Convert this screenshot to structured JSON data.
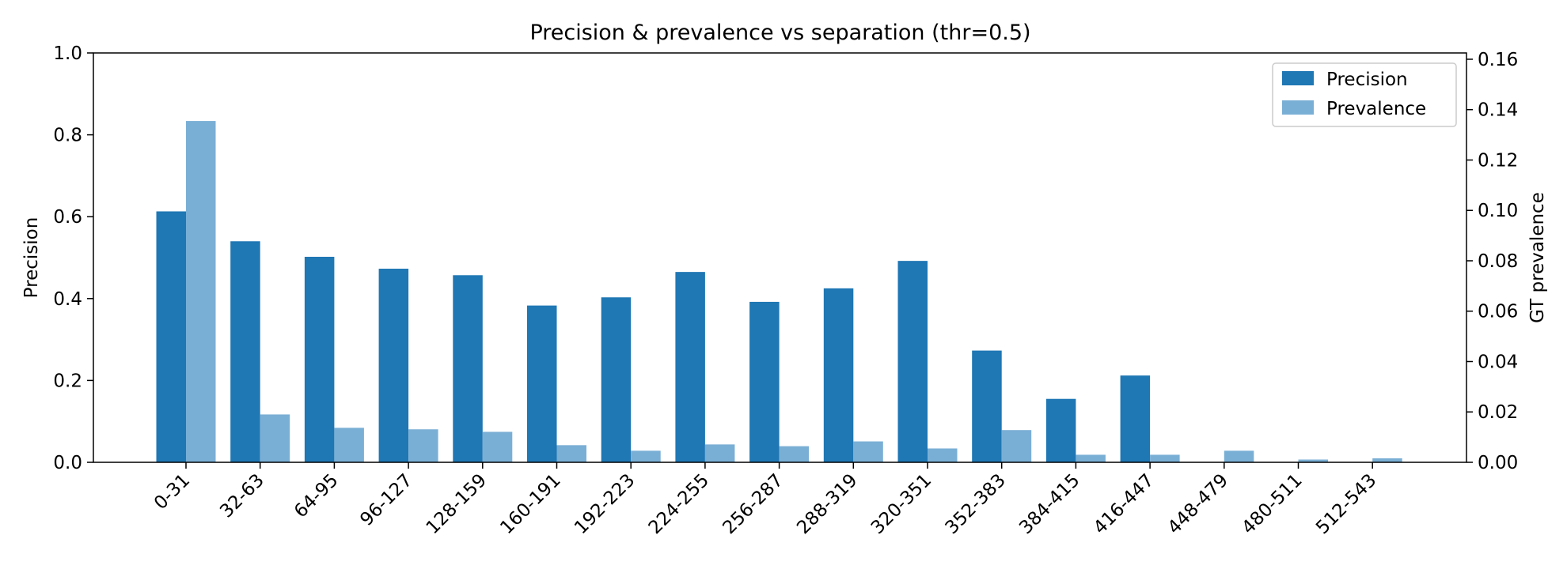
{
  "chart_data": {
    "type": "bar",
    "title": "Precision & prevalence vs separation (thr=0.5)",
    "categories": [
      "0-31",
      "32-63",
      "64-95",
      "96-127",
      "128-159",
      "160-191",
      "192-223",
      "224-255",
      "256-287",
      "288-319",
      "320-351",
      "352-383",
      "384-415",
      "416-447",
      "448-479",
      "480-511",
      "512-543"
    ],
    "series": [
      {
        "name": "Precision",
        "axis": "left",
        "color": "#1f77b4",
        "values": [
          0.613,
          0.54,
          0.502,
          0.473,
          0.457,
          0.383,
          0.403,
          0.465,
          0.392,
          0.425,
          0.492,
          0.273,
          0.155,
          0.212,
          0.0,
          0.0,
          0.0
        ]
      },
      {
        "name": "Prevalence",
        "axis": "right",
        "color": "#7aafd5",
        "values": [
          0.1355,
          0.019,
          0.0137,
          0.0131,
          0.0121,
          0.0068,
          0.0046,
          0.0071,
          0.0064,
          0.0083,
          0.0055,
          0.0128,
          0.003,
          0.003,
          0.0046,
          0.0011,
          0.0016
        ]
      }
    ],
    "ylabel": "Precision",
    "ylabel_right": "GT prevalence",
    "ylim": [
      0,
      1.0
    ],
    "ylim_right": [
      0,
      0.1625
    ],
    "yticks": [
      "0.0",
      "0.2",
      "0.4",
      "0.6",
      "0.8",
      "1.0"
    ],
    "yticks_right": [
      "0.00",
      "0.02",
      "0.04",
      "0.06",
      "0.08",
      "0.10",
      "0.12",
      "0.14",
      "0.16"
    ],
    "yticks_values": [
      0,
      0.2,
      0.4,
      0.6,
      0.8,
      1.0
    ],
    "yticks_right_values": [
      0,
      0.02,
      0.04,
      0.06,
      0.08,
      0.1,
      0.12,
      0.14,
      0.16
    ],
    "grid": false,
    "legend": "top-right"
  }
}
